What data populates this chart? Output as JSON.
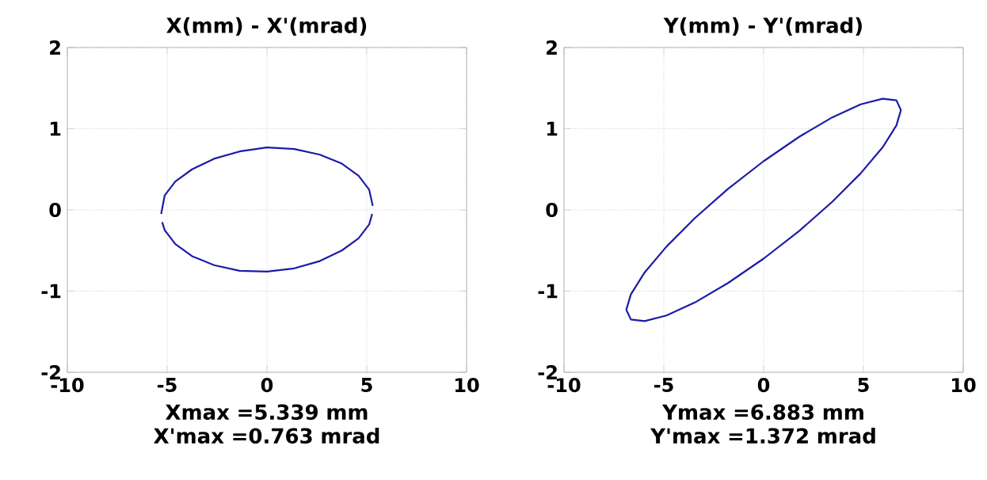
{
  "chart_data": [
    {
      "type": "line",
      "title": "X(mm) - X'(mrad)",
      "xlim": [
        -10,
        10
      ],
      "ylim": [
        -2,
        2
      ],
      "xticks": [
        -10,
        -5,
        0,
        5,
        10
      ],
      "yticks": [
        -2,
        -1,
        0,
        1,
        2
      ],
      "grid": true,
      "marker": "none",
      "line_style": "solid",
      "series": [
        {
          "color": "#1c1ca8",
          "x": [
            -5.3,
            -5.12,
            -4.59,
            -3.75,
            -2.65,
            -1.37,
            0.0,
            1.37,
            2.65,
            3.75,
            4.59,
            5.12,
            5.3
          ],
          "values": [
            -0.05,
            0.18,
            0.35,
            0.5,
            0.63,
            0.72,
            0.77,
            0.75,
            0.68,
            0.57,
            0.42,
            0.25,
            0.05
          ]
        },
        {
          "color": "#1c1ca8",
          "x": [
            -5.25,
            -5.12,
            -4.59,
            -3.75,
            -2.65,
            -1.37,
            0.0,
            1.37,
            2.65,
            3.75,
            4.59,
            5.12,
            5.27
          ],
          "values": [
            -0.15,
            -0.25,
            -0.42,
            -0.57,
            -0.68,
            -0.75,
            -0.76,
            -0.72,
            -0.63,
            -0.5,
            -0.35,
            -0.18,
            -0.05
          ]
        }
      ],
      "annotations": [
        "Xmax =5.339 mm  X'max =0.763 mrad"
      ]
    },
    {
      "type": "line",
      "title": "Y(mm) - Y'(mrad)",
      "xlim": [
        -10,
        10
      ],
      "ylim": [
        -2,
        2
      ],
      "xticks": [
        -10,
        -5,
        0,
        5,
        10
      ],
      "yticks": [
        -2,
        -1,
        0,
        1,
        2
      ],
      "grid": true,
      "marker": "none",
      "line_style": "solid",
      "series": [
        {
          "color": "#1c1ca8",
          "x": [
            -6.88,
            -6.65,
            -5.96,
            -4.86,
            -3.44,
            -1.78,
            0.0,
            1.78,
            3.44,
            4.86,
            5.96,
            6.65,
            6.88
          ],
          "values": [
            -1.23,
            -1.04,
            -0.77,
            -0.45,
            -0.1,
            0.26,
            0.6,
            0.9,
            1.14,
            1.3,
            1.37,
            1.35,
            1.23
          ]
        },
        {
          "color": "#1c1ca8",
          "x": [
            -6.88,
            -6.65,
            -5.96,
            -4.86,
            -3.44,
            -1.78,
            0.0,
            1.78,
            3.44,
            4.86,
            5.96,
            6.65,
            6.88
          ],
          "values": [
            -1.23,
            -1.35,
            -1.37,
            -1.3,
            -1.14,
            -0.9,
            -0.6,
            -0.26,
            0.1,
            0.45,
            0.77,
            1.04,
            1.23
          ]
        }
      ],
      "annotations": [
        "Ymax =6.883 mm  Y'max =1.372 mrad"
      ]
    }
  ]
}
